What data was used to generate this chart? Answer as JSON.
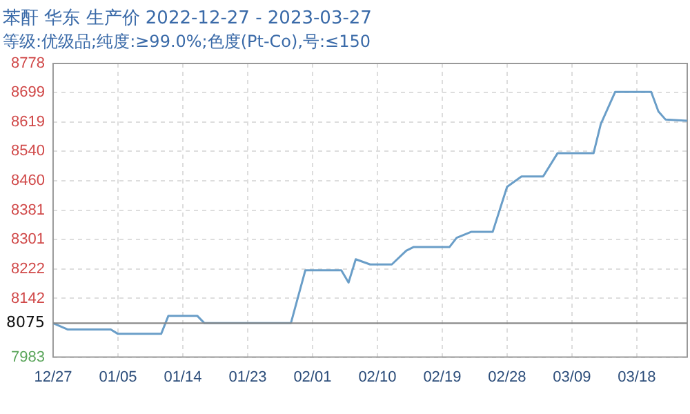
{
  "chart_data": {
    "type": "line",
    "title": "苯酐 华东 生产价 2022-12-27 - 2023-03-27",
    "subtitle": "等级:优级品;纯度:≥99.0%;色度(Pt-Co),号:≤150",
    "x": [
      "2022-12-27",
      "2022-12-29",
      "2023-01-04",
      "2023-01-05",
      "2023-01-11",
      "2023-01-12",
      "2023-01-16",
      "2023-01-17",
      "2023-01-29",
      "2023-01-31",
      "2023-02-05",
      "2023-02-06",
      "2023-02-07",
      "2023-02-09",
      "2023-02-12",
      "2023-02-14",
      "2023-02-15",
      "2023-02-20",
      "2023-02-21",
      "2023-02-23",
      "2023-02-26",
      "2023-02-28",
      "2023-03-02",
      "2023-03-05",
      "2023-03-07",
      "2023-03-12",
      "2023-03-13",
      "2023-03-15",
      "2023-03-20",
      "2023-03-21",
      "2023-03-22",
      "2023-03-25"
    ],
    "series": [
      {
        "color": "#6a9ec8",
        "values": [
          8075,
          8058,
          8058,
          8046,
          8046,
          8095,
          8095,
          8075,
          8075,
          8218,
          8218,
          8185,
          8248,
          8234,
          8234,
          8271,
          8281,
          8281,
          8306,
          8322,
          8322,
          8444,
          8472,
          8472,
          8535,
          8535,
          8614,
          8701,
          8701,
          8648,
          8626,
          8623
        ]
      }
    ],
    "xlim": [
      "2022-12-27",
      "2023-03-25"
    ],
    "xticks": [
      {
        "value": "2022-12-27",
        "label": "12/27"
      },
      {
        "value": "2023-01-05",
        "label": "01/05"
      },
      {
        "value": "2023-01-14",
        "label": "01/14"
      },
      {
        "value": "2023-01-23",
        "label": "01/23"
      },
      {
        "value": "2023-02-01",
        "label": "02/01"
      },
      {
        "value": "2023-02-10",
        "label": "02/10"
      },
      {
        "value": "2023-02-19",
        "label": "02/19"
      },
      {
        "value": "2023-02-28",
        "label": "02/28"
      },
      {
        "value": "2023-03-09",
        "label": "03/09"
      },
      {
        "value": "2023-03-18",
        "label": "03/18"
      }
    ],
    "ylim": [
      7983,
      8778
    ],
    "yticks": [
      7983,
      8142,
      8222,
      8301,
      8381,
      8460,
      8540,
      8619,
      8699,
      8778
    ],
    "ref_lines": [
      {
        "axis": "y",
        "value": 8075,
        "label": "8075",
        "color": "#888888"
      }
    ],
    "grid": true,
    "legend": false,
    "marker": "none",
    "line_style": "solid"
  }
}
